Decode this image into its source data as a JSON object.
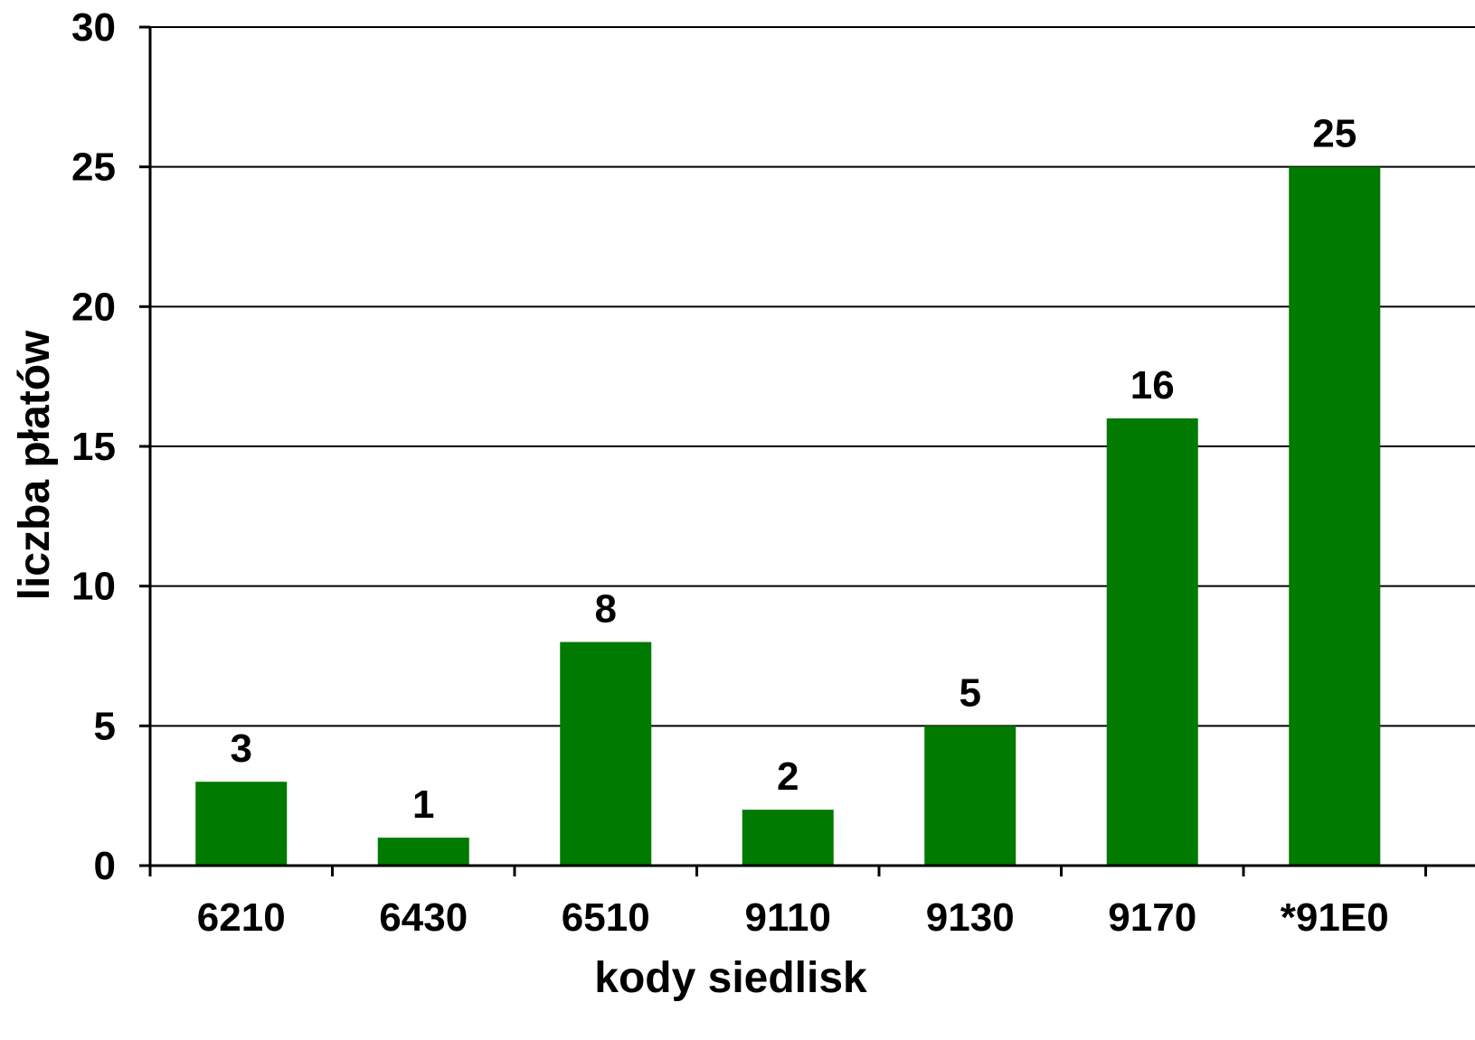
{
  "chart_data": {
    "type": "bar",
    "title": "",
    "xlabel": "kody siedlisk",
    "ylabel": "liczba płatów",
    "categories": [
      "6210",
      "6430",
      "6510",
      "9110",
      "9130",
      "9170",
      "*91E0"
    ],
    "values": [
      3,
      1,
      8,
      2,
      5,
      16,
      25
    ],
    "ylim": [
      0,
      30
    ],
    "yticks": [
      "0",
      "5",
      "10",
      "15",
      "20",
      "25",
      "30"
    ],
    "grid": true,
    "legend": "none",
    "bar_color": "#007a00"
  }
}
